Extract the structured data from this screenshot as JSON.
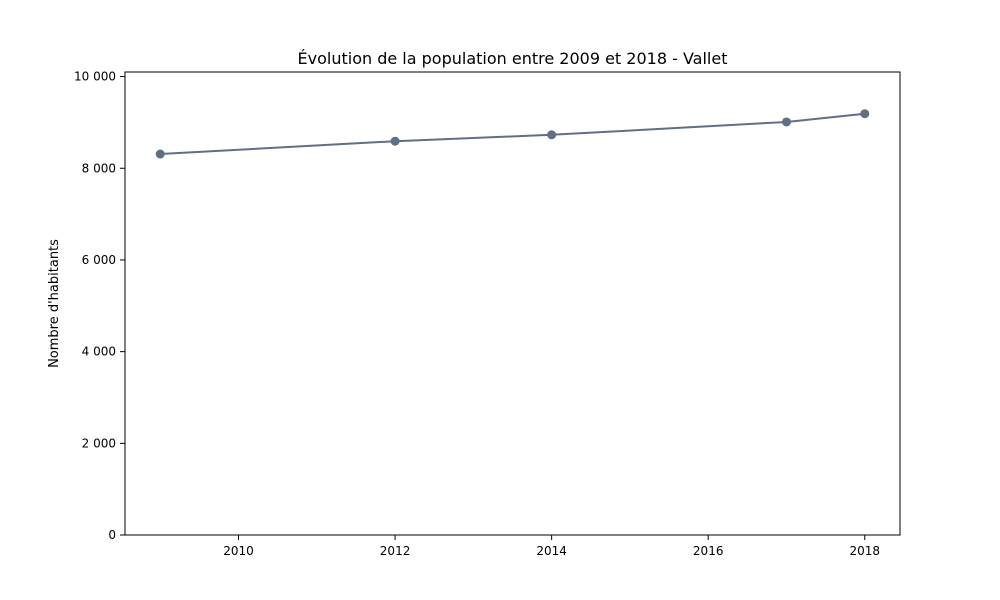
{
  "chart_data": {
    "type": "line",
    "title": "Évolution de la population entre 2009 et 2018 - Vallet",
    "xlabel": "",
    "ylabel": "Nombre d'habitants",
    "x": [
      2009,
      2012,
      2014,
      2017,
      2018
    ],
    "series": [
      {
        "values": [
          8310,
          8590,
          8730,
          9010,
          9190
        ],
        "color": "#5f6f84"
      }
    ],
    "xlim": [
      2008.55,
      2018.45
    ],
    "ylim": [
      0,
      10100
    ],
    "x_ticks": [
      2010,
      2012,
      2014,
      2016,
      2018
    ],
    "x_tick_labels": [
      "2010",
      "2012",
      "2014",
      "2016",
      "2018"
    ],
    "y_ticks": [
      0,
      2000,
      4000,
      6000,
      8000,
      10000
    ],
    "y_tick_labels": [
      "0",
      "2 000",
      "4 000",
      "6 000",
      "8 000",
      "10 000"
    ],
    "grid": false,
    "legend": "none",
    "markers": true
  }
}
